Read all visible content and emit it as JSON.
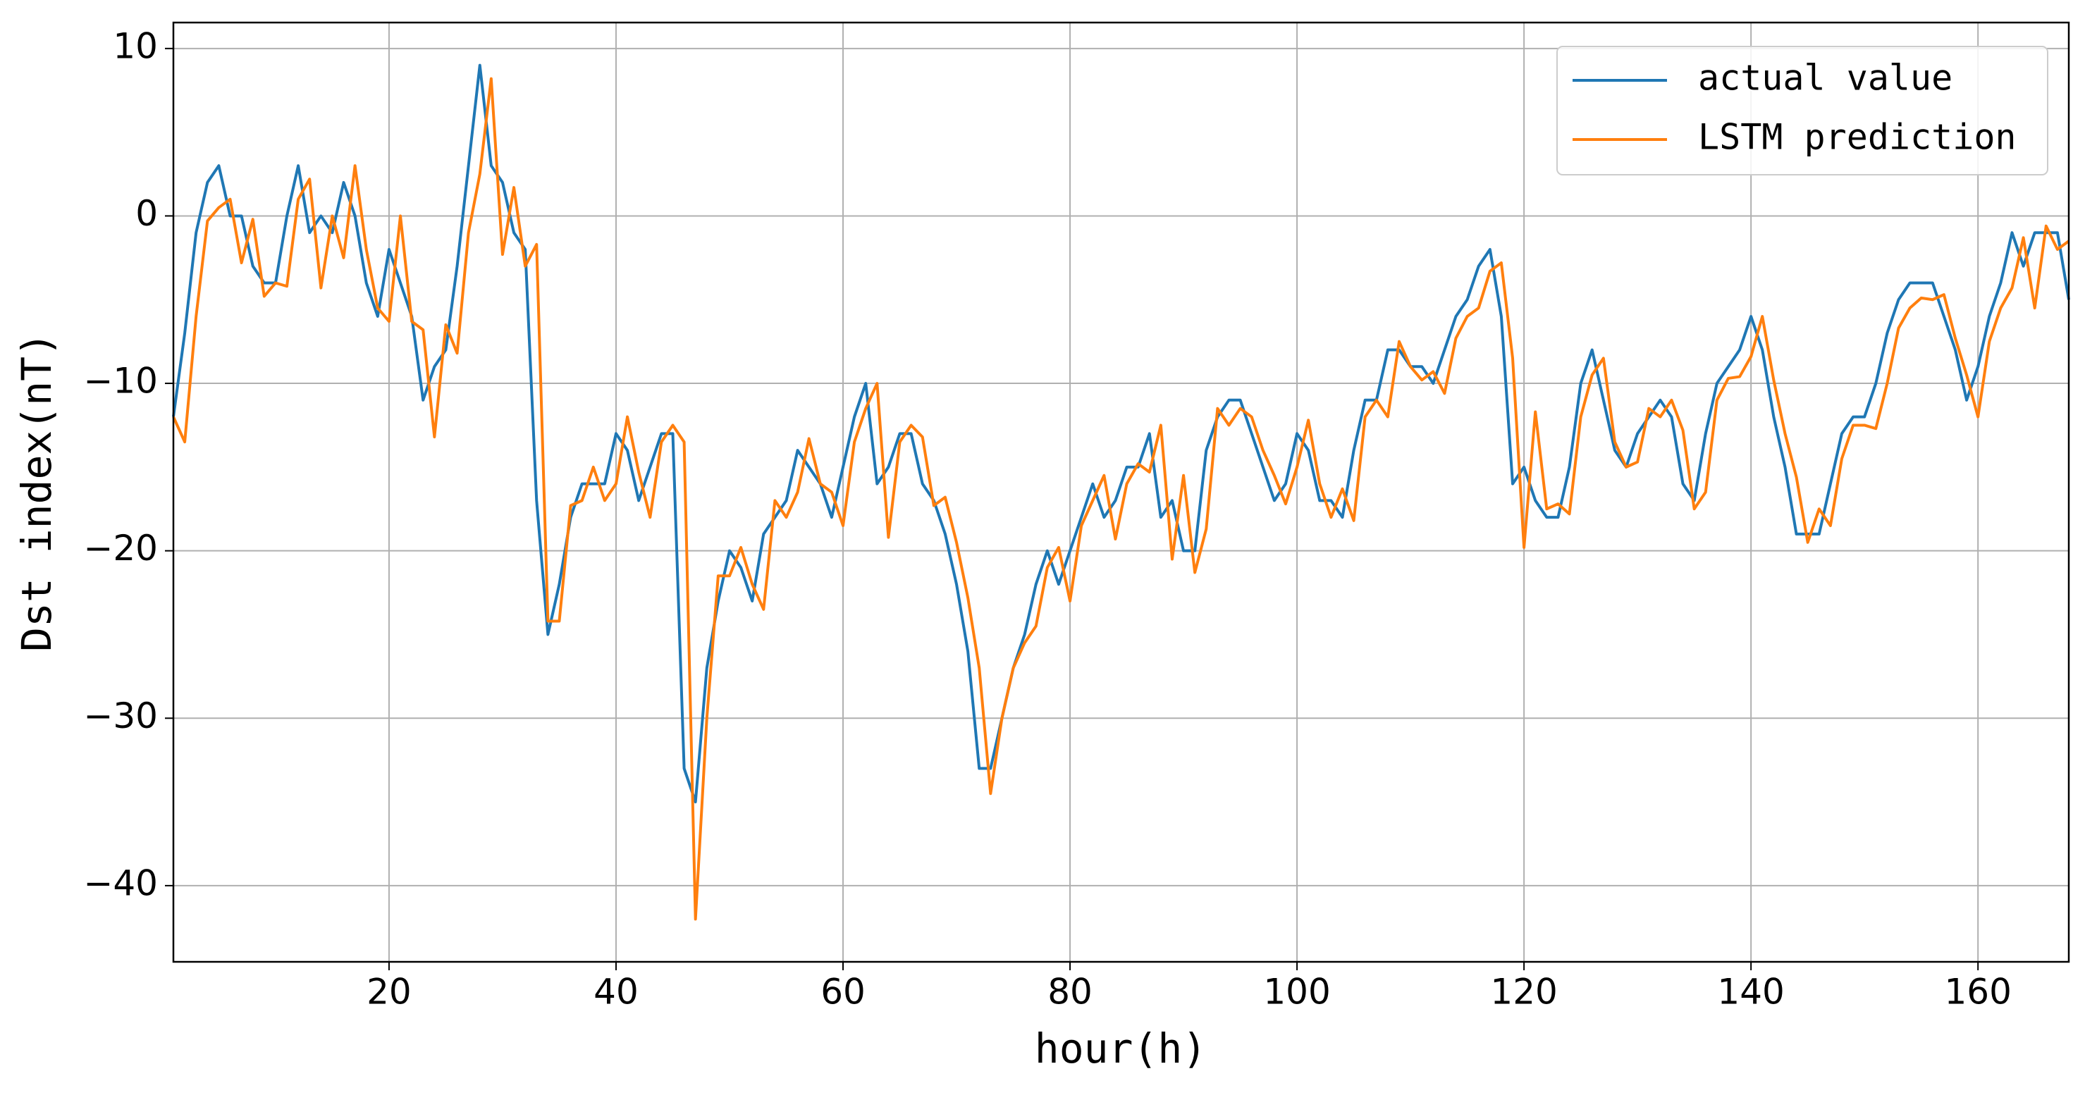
{
  "chart_data": {
    "type": "line",
    "x_label": "hour(h)",
    "y_label": "Dst index(nT)",
    "x": [
      1,
      2,
      3,
      4,
      5,
      6,
      7,
      8,
      9,
      10,
      11,
      12,
      13,
      14,
      15,
      16,
      17,
      18,
      19,
      20,
      21,
      22,
      23,
      24,
      25,
      26,
      27,
      28,
      29,
      30,
      31,
      32,
      33,
      34,
      35,
      36,
      37,
      38,
      39,
      40,
      41,
      42,
      43,
      44,
      45,
      46,
      47,
      48,
      49,
      50,
      51,
      52,
      53,
      54,
      55,
      56,
      57,
      58,
      59,
      60,
      61,
      62,
      63,
      64,
      65,
      66,
      67,
      68,
      69,
      70,
      71,
      72,
      73,
      74,
      75,
      76,
      77,
      78,
      79,
      80,
      81,
      82,
      83,
      84,
      85,
      86,
      87,
      88,
      89,
      90,
      91,
      92,
      93,
      94,
      95,
      96,
      97,
      98,
      99,
      100,
      101,
      102,
      103,
      104,
      105,
      106,
      107,
      108,
      109,
      110,
      111,
      112,
      113,
      114,
      115,
      116,
      117,
      118,
      119,
      120,
      121,
      122,
      123,
      124,
      125,
      126,
      127,
      128,
      129,
      130,
      131,
      132,
      133,
      134,
      135,
      136,
      137,
      138,
      139,
      140,
      141,
      142,
      143,
      144,
      145,
      146,
      147,
      148,
      149,
      150,
      151,
      152,
      153,
      154,
      155,
      156,
      157,
      158,
      159,
      160,
      161,
      162,
      163,
      164,
      165,
      166,
      167,
      168
    ],
    "series": [
      {
        "name": "actual value",
        "color": "#1f77b4",
        "values": [
          -12,
          -7,
          -1,
          2,
          3,
          0,
          0,
          -3,
          -4,
          -4,
          0,
          3,
          -1,
          0,
          -1,
          2,
          0,
          -4,
          -6,
          -2,
          -4,
          -6,
          -11,
          -9,
          -8,
          -3,
          3,
          9,
          3,
          2,
          -1,
          -2,
          -17,
          -25,
          -22,
          -18,
          -16,
          -16,
          -16,
          -13,
          -14,
          -17,
          -15,
          -13,
          -13,
          -33,
          -35,
          -27,
          -23,
          -20,
          -21,
          -23,
          -19,
          -18,
          -17,
          -14,
          -15,
          -16,
          -18,
          -15,
          -12,
          -10,
          -16,
          -15,
          -13,
          -13,
          -16,
          -17,
          -19,
          -22,
          -26,
          -33,
          -33,
          -30,
          -27,
          -25,
          -22,
          -20,
          -22,
          -20,
          -18,
          -16,
          -18,
          -17,
          -15,
          -15,
          -13,
          -18,
          -17,
          -20,
          -20,
          -14,
          -12,
          -11,
          -11,
          -13,
          -15,
          -17,
          -16,
          -13,
          -14,
          -17,
          -17,
          -18,
          -14,
          -11,
          -11,
          -8,
          -8,
          -9,
          -9,
          -10,
          -8,
          -6,
          -5,
          -3,
          -2,
          -6,
          -16,
          -15,
          -17,
          -18,
          -18,
          -15,
          -10,
          -8,
          -11,
          -14,
          -15,
          -13,
          -12,
          -11,
          -12,
          -16,
          -17,
          -13,
          -10,
          -9,
          -8,
          -6,
          -8,
          -12,
          -15,
          -19,
          -19,
          -19,
          -16,
          -13,
          -12,
          -12,
          -10,
          -7,
          -5,
          -4,
          -4,
          -4,
          -6,
          -8,
          -11,
          -9,
          -6,
          -4,
          -1,
          -3,
          -1,
          -1,
          -1,
          -5
        ]
      },
      {
        "name": "LSTM prediction",
        "color": "#ff7f0e",
        "values": [
          -12,
          -13.5,
          -6,
          -0.3,
          0.5,
          1,
          -2.8,
          -0.2,
          -4.8,
          -4,
          -4.2,
          1,
          2.2,
          -4.3,
          0,
          -2.5,
          3,
          -2,
          -5.5,
          -6.3,
          0,
          -6.3,
          -6.8,
          -13.2,
          -6.5,
          -8.2,
          -1,
          2.5,
          8.2,
          -2.3,
          1.7,
          -3,
          -1.7,
          -24.2,
          -24.2,
          -17.3,
          -17,
          -15,
          -17,
          -16,
          -12,
          -15.3,
          -18,
          -13.5,
          -12.5,
          -13.5,
          -42,
          -30,
          -21.5,
          -21.5,
          -19.8,
          -22,
          -23.5,
          -17,
          -18,
          -16.5,
          -13.3,
          -16,
          -16.5,
          -18.5,
          -13.5,
          -11.5,
          -10,
          -19.2,
          -13.5,
          -12.5,
          -13.2,
          -17.3,
          -16.8,
          -19.5,
          -22.8,
          -27,
          -34.5,
          -30,
          -27,
          -25.5,
          -24.5,
          -21,
          -19.8,
          -23,
          -18.5,
          -17,
          -15.5,
          -19.3,
          -16,
          -14.8,
          -15.3,
          -12.5,
          -20.5,
          -15.5,
          -21.3,
          -18.7,
          -11.5,
          -12.5,
          -11.5,
          -12,
          -14,
          -15.5,
          -17.2,
          -15,
          -12.2,
          -16,
          -18,
          -16.3,
          -18.2,
          -12,
          -11,
          -12,
          -7.5,
          -9,
          -9.8,
          -9.3,
          -10.6,
          -7.3,
          -6,
          -5.5,
          -3.3,
          -2.8,
          -8.5,
          -19.8,
          -11.7,
          -17.5,
          -17.2,
          -17.8,
          -12,
          -9.5,
          -8.5,
          -13.5,
          -15,
          -14.7,
          -11.5,
          -12,
          -11,
          -12.8,
          -17.5,
          -16.5,
          -11,
          -9.7,
          -9.6,
          -8.4,
          -6,
          -9.8,
          -13,
          -15.6,
          -19.5,
          -17.5,
          -18.5,
          -14.5,
          -12.5,
          -12.5,
          -12.7,
          -10,
          -6.7,
          -5.5,
          -4.9,
          -5,
          -4.7,
          -7.3,
          -9.5,
          -12,
          -7.5,
          -5.5,
          -4.3,
          -1.3,
          -5.5,
          -0.6,
          -2,
          -1.5
        ]
      }
    ],
    "xlim": [
      1,
      168
    ],
    "xticks": [
      20,
      40,
      60,
      80,
      100,
      120,
      140,
      160
    ],
    "ylim": [
      -44.55,
      11.55
    ],
    "yticks": [
      {
        "value": -40,
        "label": "−40"
      },
      {
        "value": -30,
        "label": "−30"
      },
      {
        "value": -20,
        "label": "−20"
      },
      {
        "value": -10,
        "label": "−10"
      },
      0,
      10
    ],
    "grid": true,
    "legend": "upper right"
  }
}
